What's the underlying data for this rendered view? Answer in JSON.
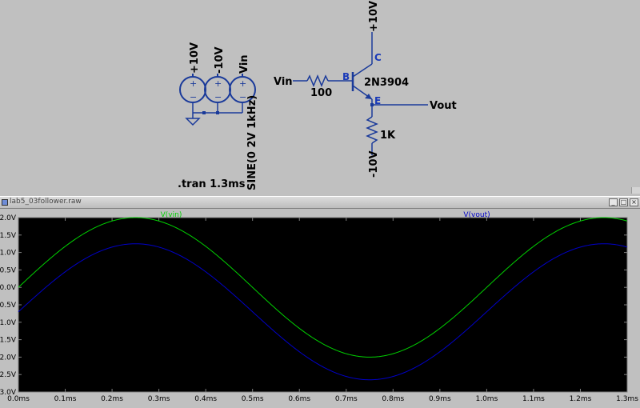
{
  "schematic": {
    "sources": [
      {
        "label": "+10V"
      },
      {
        "label": "-10V"
      },
      {
        "label": "Vin"
      }
    ],
    "source_value": "SINE(0 2V 1kHz)",
    "tran_directive": ".tran 1.3ms",
    "transistor_model": "2N3904",
    "pins": {
      "base": "B",
      "collector": "C",
      "emitter": "E"
    },
    "nets": {
      "input": "Vin",
      "output": "Vout",
      "supply_pos": "+10V",
      "supply_neg": "-10V"
    },
    "resistors": [
      {
        "value": "100"
      },
      {
        "value": "1K"
      }
    ],
    "plus_sign": "+",
    "minus_sign": "−"
  },
  "plot_window": {
    "title": "lab5_03follower.raw",
    "buttons": {
      "minimize": "_",
      "maximize": "□",
      "close": "×"
    }
  },
  "chart_data": {
    "type": "line",
    "x_unit": "ms",
    "xlim": [
      0,
      1.3
    ],
    "ylim": [
      -3.0,
      2.0
    ],
    "x_ticks": [
      "0.0ms",
      "0.1ms",
      "0.2ms",
      "0.3ms",
      "0.4ms",
      "0.5ms",
      "0.6ms",
      "0.7ms",
      "0.8ms",
      "0.9ms",
      "1.0ms",
      "1.1ms",
      "1.2ms",
      "1.3ms"
    ],
    "y_ticks": [
      "2.0V",
      "1.5V",
      "1.0V",
      "0.5V",
      "0.0V",
      "-0.5V",
      "-1.0V",
      "-1.5V",
      "-2.0V",
      "-2.5V",
      "-3.0V"
    ],
    "y_tick_values": [
      2.0,
      1.5,
      1.0,
      0.5,
      0.0,
      -0.5,
      -1.0,
      -1.5,
      -2.0,
      -2.5,
      -3.0
    ],
    "grid": false,
    "series": [
      {
        "name": "V(vin)",
        "color": "#00d000",
        "formula": "2*sin(2*pi*t)",
        "amplitude": 2.0,
        "offset": 0.0,
        "freq_khz": 1
      },
      {
        "name": "V(vout)",
        "color": "#0000c8",
        "formula": "1.95*sin(2*pi*t)-0.7",
        "amplitude": 1.95,
        "offset": -0.7,
        "freq_khz": 1
      }
    ]
  }
}
